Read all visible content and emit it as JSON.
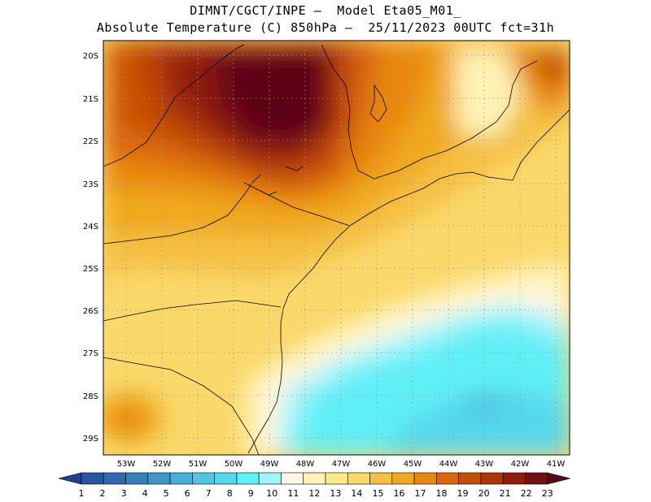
{
  "header": {
    "line1": "DIMNT/CGCT/INPE –  Model Eta05_M01_",
    "line2": "Absolute Temperature (C) 850hPa –  25/11/2023 00UTC fct=31h"
  },
  "axes": {
    "lat_labels": [
      "20S",
      "21S",
      "22S",
      "23S",
      "24S",
      "25S",
      "26S",
      "27S",
      "28S",
      "29S"
    ],
    "lon_labels": [
      "53W",
      "52W",
      "51W",
      "50W",
      "49W",
      "48W",
      "47W",
      "46W",
      "45W",
      "44W",
      "43W",
      "42W",
      "41W"
    ]
  },
  "colorbar": {
    "labels": [
      "1",
      "2",
      "3",
      "4",
      "5",
      "6",
      "7",
      "8",
      "9",
      "10",
      "11",
      "12",
      "13",
      "14",
      "15",
      "16",
      "17",
      "18",
      "19",
      "20",
      "21",
      "22",
      "23"
    ],
    "colors": [
      "#1f3f8f",
      "#2a55a0",
      "#2f6aae",
      "#3681bb",
      "#3e97c9",
      "#47b0d6",
      "#4fc6e2",
      "#56d8ec",
      "#5feff7",
      "#9ff4fb",
      "#fff7e6",
      "#fff3b5",
      "#ffe98a",
      "#fad86a",
      "#f5c042",
      "#f0a81f",
      "#e8880d",
      "#d96608",
      "#c44d06",
      "#ac3507",
      "#8f1f0b",
      "#751012",
      "#5c0418"
    ]
  }
}
